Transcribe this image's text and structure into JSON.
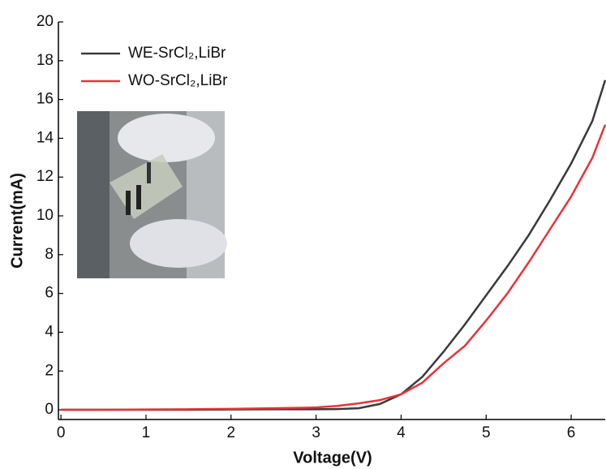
{
  "chart_data": {
    "type": "line",
    "x_label": "Voltage(V)",
    "y_label": "Current(mA)",
    "x": [
      0,
      0.5,
      1,
      1.5,
      2,
      2.5,
      3,
      3.25,
      3.5,
      3.75,
      4,
      4.25,
      4.5,
      4.75,
      5,
      5.25,
      5.5,
      5.75,
      6,
      6.25,
      6.4
    ],
    "series": [
      {
        "name": "WE-SrCl₂,LiBr",
        "color": "#3a3a3a",
        "values": [
          0,
          0,
          0,
          0,
          0.02,
          0.03,
          0.03,
          0.04,
          0.08,
          0.3,
          0.8,
          1.7,
          3.0,
          4.4,
          5.9,
          7.4,
          9.0,
          10.8,
          12.7,
          14.9,
          17.0
        ]
      },
      {
        "name": "WO-SrCl₂,LiBr",
        "color": "#e8333a",
        "values": [
          0,
          0,
          0.02,
          0.03,
          0.05,
          0.08,
          0.12,
          0.2,
          0.33,
          0.5,
          0.8,
          1.4,
          2.4,
          3.3,
          4.6,
          6.0,
          7.6,
          9.3,
          11.0,
          13.0,
          14.7
        ]
      }
    ],
    "xlim": [
      -0.03,
      6.4
    ],
    "ylim": [
      -0.5,
      20
    ],
    "xticks": [
      0,
      1,
      2,
      3,
      4,
      5,
      6
    ],
    "yticks": [
      0,
      2,
      4,
      6,
      8,
      10,
      12,
      14,
      16,
      18,
      20
    ],
    "legend": "upper-left"
  }
}
